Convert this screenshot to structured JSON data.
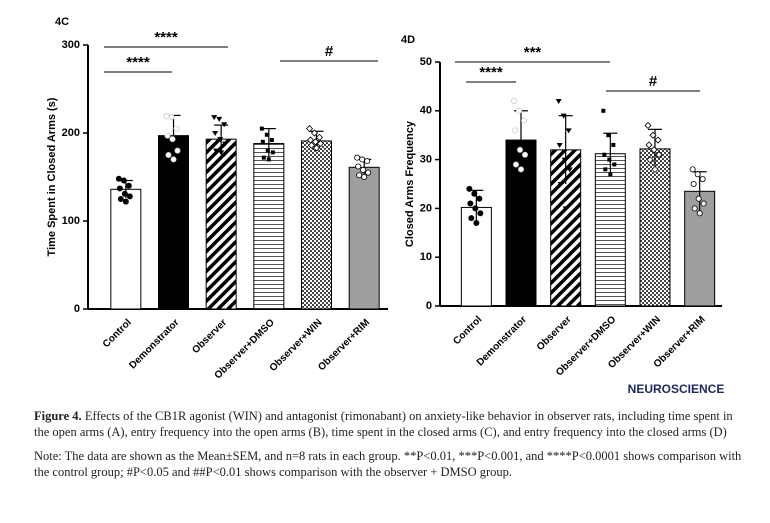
{
  "chart_data": [
    {
      "type": "bar",
      "panel": "4C",
      "y_label": "Time Spent in Closed Arms (s)",
      "categories": [
        "Control",
        "Demonstrator",
        "Observer",
        "Observer+DMSO",
        "Observer+WIN",
        "Observer+RIM"
      ],
      "values": [
        136,
        197,
        193,
        188,
        191,
        161
      ],
      "errors": [
        10,
        23,
        16,
        17,
        11,
        9
      ],
      "points": [
        [
          148,
          146,
          140,
          137,
          131,
          128,
          125,
          122
        ],
        [
          219,
          218,
          205,
          197,
          193,
          180,
          175,
          170
        ],
        [
          218,
          216,
          210,
          200,
          193,
          188,
          180,
          178
        ],
        [
          205,
          198,
          192,
          190,
          180,
          178,
          172,
          170
        ],
        [
          205,
          200,
          195,
          192,
          190,
          188,
          186,
          183
        ],
        [
          172,
          170,
          168,
          162,
          158,
          155,
          152,
          150
        ]
      ],
      "fills": [
        "white",
        "black",
        "diagonal",
        "horizontal",
        "checker",
        "#9e9e9e"
      ],
      "ylim": [
        0,
        300
      ],
      "yticks": [
        0,
        100,
        200,
        300
      ],
      "annotations": [
        "****",
        "****",
        "#"
      ]
    },
    {
      "type": "bar",
      "panel": "4D",
      "y_label": "Closed Arms Frequency",
      "categories": [
        "Control",
        "Demonstrator",
        "Observer",
        "Observer+DMSO",
        "Observer+WIN",
        "Observer+RIM"
      ],
      "values": [
        20.2,
        34,
        32,
        31.2,
        32.2,
        23.5
      ],
      "errors": [
        3.5,
        6,
        7,
        4.2,
        4,
        4
      ],
      "points": [
        [
          24,
          23,
          22,
          21,
          20,
          19,
          18,
          17
        ],
        [
          42,
          40,
          38,
          36,
          32,
          31,
          29,
          28
        ],
        [
          42,
          39,
          36,
          33,
          30,
          28,
          25,
          20
        ],
        [
          40,
          35,
          33,
          31,
          30,
          29,
          28,
          27
        ],
        [
          37,
          35,
          34,
          33,
          32,
          31,
          30,
          28
        ],
        [
          28,
          27,
          26,
          25,
          22,
          21,
          20,
          19
        ]
      ],
      "fills": [
        "white",
        "black",
        "diagonal",
        "horizontal",
        "checker",
        "#9e9e9e"
      ],
      "ylim": [
        0,
        50
      ],
      "yticks": [
        0,
        10,
        20,
        30,
        40,
        50
      ],
      "annotations": [
        "***",
        "****",
        "#"
      ]
    }
  ],
  "logo": "NEUROSCIENCE",
  "caption": {
    "label": "Figure 4.",
    "text": "Effects of the CB1R agonist (WIN) and antagonist (rimonabant) on anxiety-like behavior in observer rats, including time spent in the open arms (A), entry frequency into the open arms (B), time spent in the closed arms (C), and entry frequency into the closed arms (D)"
  },
  "note": "Note: The data are shown as the Mean±SEM, and n=8 rats in each group. **P<0.01, ***P<0.001, and ****P<0.0001 shows comparison with the control group; #P<0.05 and ##P<0.01 shows comparison with the observer + DMSO group."
}
